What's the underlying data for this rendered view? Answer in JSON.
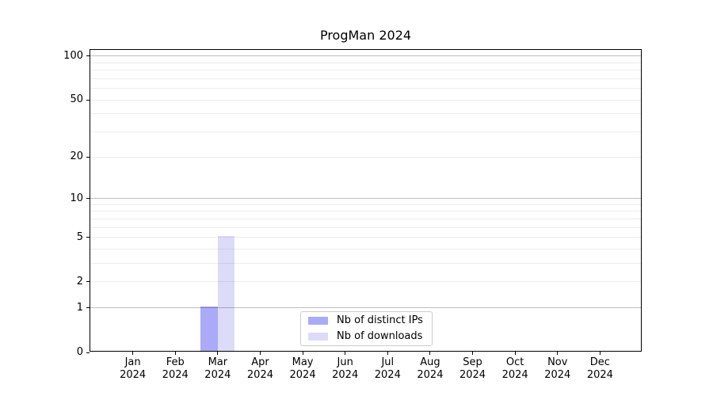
{
  "chart_data": {
    "type": "bar",
    "title": "ProgMan 2024",
    "categories": [
      {
        "month": "Jan",
        "year": "2024"
      },
      {
        "month": "Feb",
        "year": "2024"
      },
      {
        "month": "Mar",
        "year": "2024"
      },
      {
        "month": "Apr",
        "year": "2024"
      },
      {
        "month": "May",
        "year": "2024"
      },
      {
        "month": "Jun",
        "year": "2024"
      },
      {
        "month": "Jul",
        "year": "2024"
      },
      {
        "month": "Aug",
        "year": "2024"
      },
      {
        "month": "Sep",
        "year": "2024"
      },
      {
        "month": "Oct",
        "year": "2024"
      },
      {
        "month": "Nov",
        "year": "2024"
      },
      {
        "month": "Dec",
        "year": "2024"
      }
    ],
    "series": [
      {
        "name": "Nb of distinct IPs",
        "color": "#aaaaf8",
        "values": [
          0,
          0,
          1,
          0,
          0,
          0,
          0,
          0,
          0,
          0,
          0,
          0
        ]
      },
      {
        "name": "Nb of downloads",
        "color": "#dcdcf8",
        "values": [
          0,
          0,
          5,
          0,
          0,
          0,
          0,
          0,
          0,
          0,
          0,
          0
        ]
      }
    ],
    "yscale": "log10(1+x)",
    "ylim": [
      0,
      110
    ],
    "yticks": [
      0,
      1,
      2,
      5,
      10,
      20,
      50,
      100
    ],
    "grid": {
      "decade_values": [
        1,
        10,
        100
      ],
      "minor_values": [
        2,
        3,
        4,
        5,
        6,
        7,
        8,
        9,
        20,
        30,
        40,
        50,
        60,
        70,
        80,
        90
      ]
    },
    "legend_position": "lower center",
    "axis_color": "#000000",
    "background_color": "#ffffff"
  }
}
